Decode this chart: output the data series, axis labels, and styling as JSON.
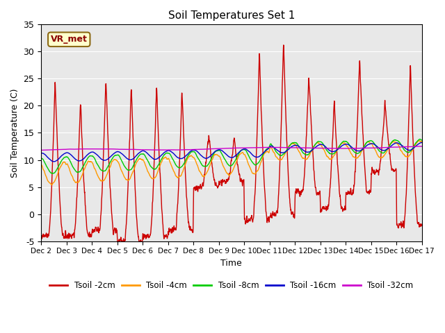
{
  "title": "Soil Temperatures Set 1",
  "xlabel": "Time",
  "ylabel": "Soil Temperature (C)",
  "ylim": [
    -5,
    35
  ],
  "xlim": [
    0,
    15
  ],
  "xtick_labels": [
    "Dec 2",
    "Dec 3",
    "Dec 4",
    "Dec 5",
    "Dec 6",
    "Dec 7",
    "Dec 8",
    "Dec 9",
    "Dec 10",
    "Dec 11",
    "Dec 12",
    "Dec 13",
    "Dec 14",
    "Dec 15",
    "Dec 16",
    "Dec 17"
  ],
  "ytick_vals": [
    -5,
    0,
    5,
    10,
    15,
    20,
    25,
    30,
    35
  ],
  "bg_color": "#e8e8e8",
  "legend_label": "VR_met",
  "series_colors": [
    "#cc0000",
    "#ff9900",
    "#00cc00",
    "#0000cc",
    "#cc00cc"
  ],
  "series_labels": [
    "Tsoil -2cm",
    "Tsoil -4cm",
    "Tsoil -8cm",
    "Tsoil -16cm",
    "Tsoil -32cm"
  ],
  "line_widths": [
    1.0,
    1.0,
    1.0,
    1.0,
    1.0
  ]
}
